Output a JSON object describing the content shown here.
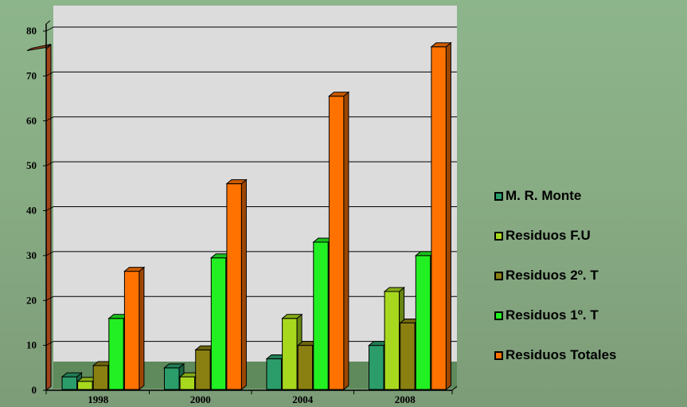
{
  "chart_data": {
    "type": "bar",
    "categories": [
      "1998",
      "2000",
      "2004",
      "2008"
    ],
    "series": [
      {
        "name": "M. R. Monte",
        "values": [
          3,
          5,
          7,
          10
        ],
        "color": "#2a9d6a"
      },
      {
        "name": "Residuos F.U",
        "values": [
          2,
          3,
          16,
          22
        ],
        "color": "#a8d81e"
      },
      {
        "name": "Residuos 2º. T",
        "values": [
          5.5,
          9,
          10,
          15
        ],
        "color": "#8a8012"
      },
      {
        "name": "Residuos 1º. T",
        "values": [
          16,
          29.5,
          33,
          30
        ],
        "color": "#22f022"
      },
      {
        "name": "Residuos Totales",
        "values": [
          26.5,
          46,
          65.5,
          76.5
        ],
        "color": "#ff7200"
      }
    ],
    "ylim": [
      0,
      80
    ],
    "yticks": [
      "0",
      "10",
      "20",
      "30",
      "40",
      "50",
      "60",
      "70",
      "80"
    ],
    "xlabel": "",
    "ylabel": "",
    "grid": true,
    "legend_position": "right",
    "colors": {
      "plot_background": "#dcdcdc",
      "floor": "#5f8a5c",
      "left_wall": "#a0441a",
      "grid": "#000000"
    }
  }
}
